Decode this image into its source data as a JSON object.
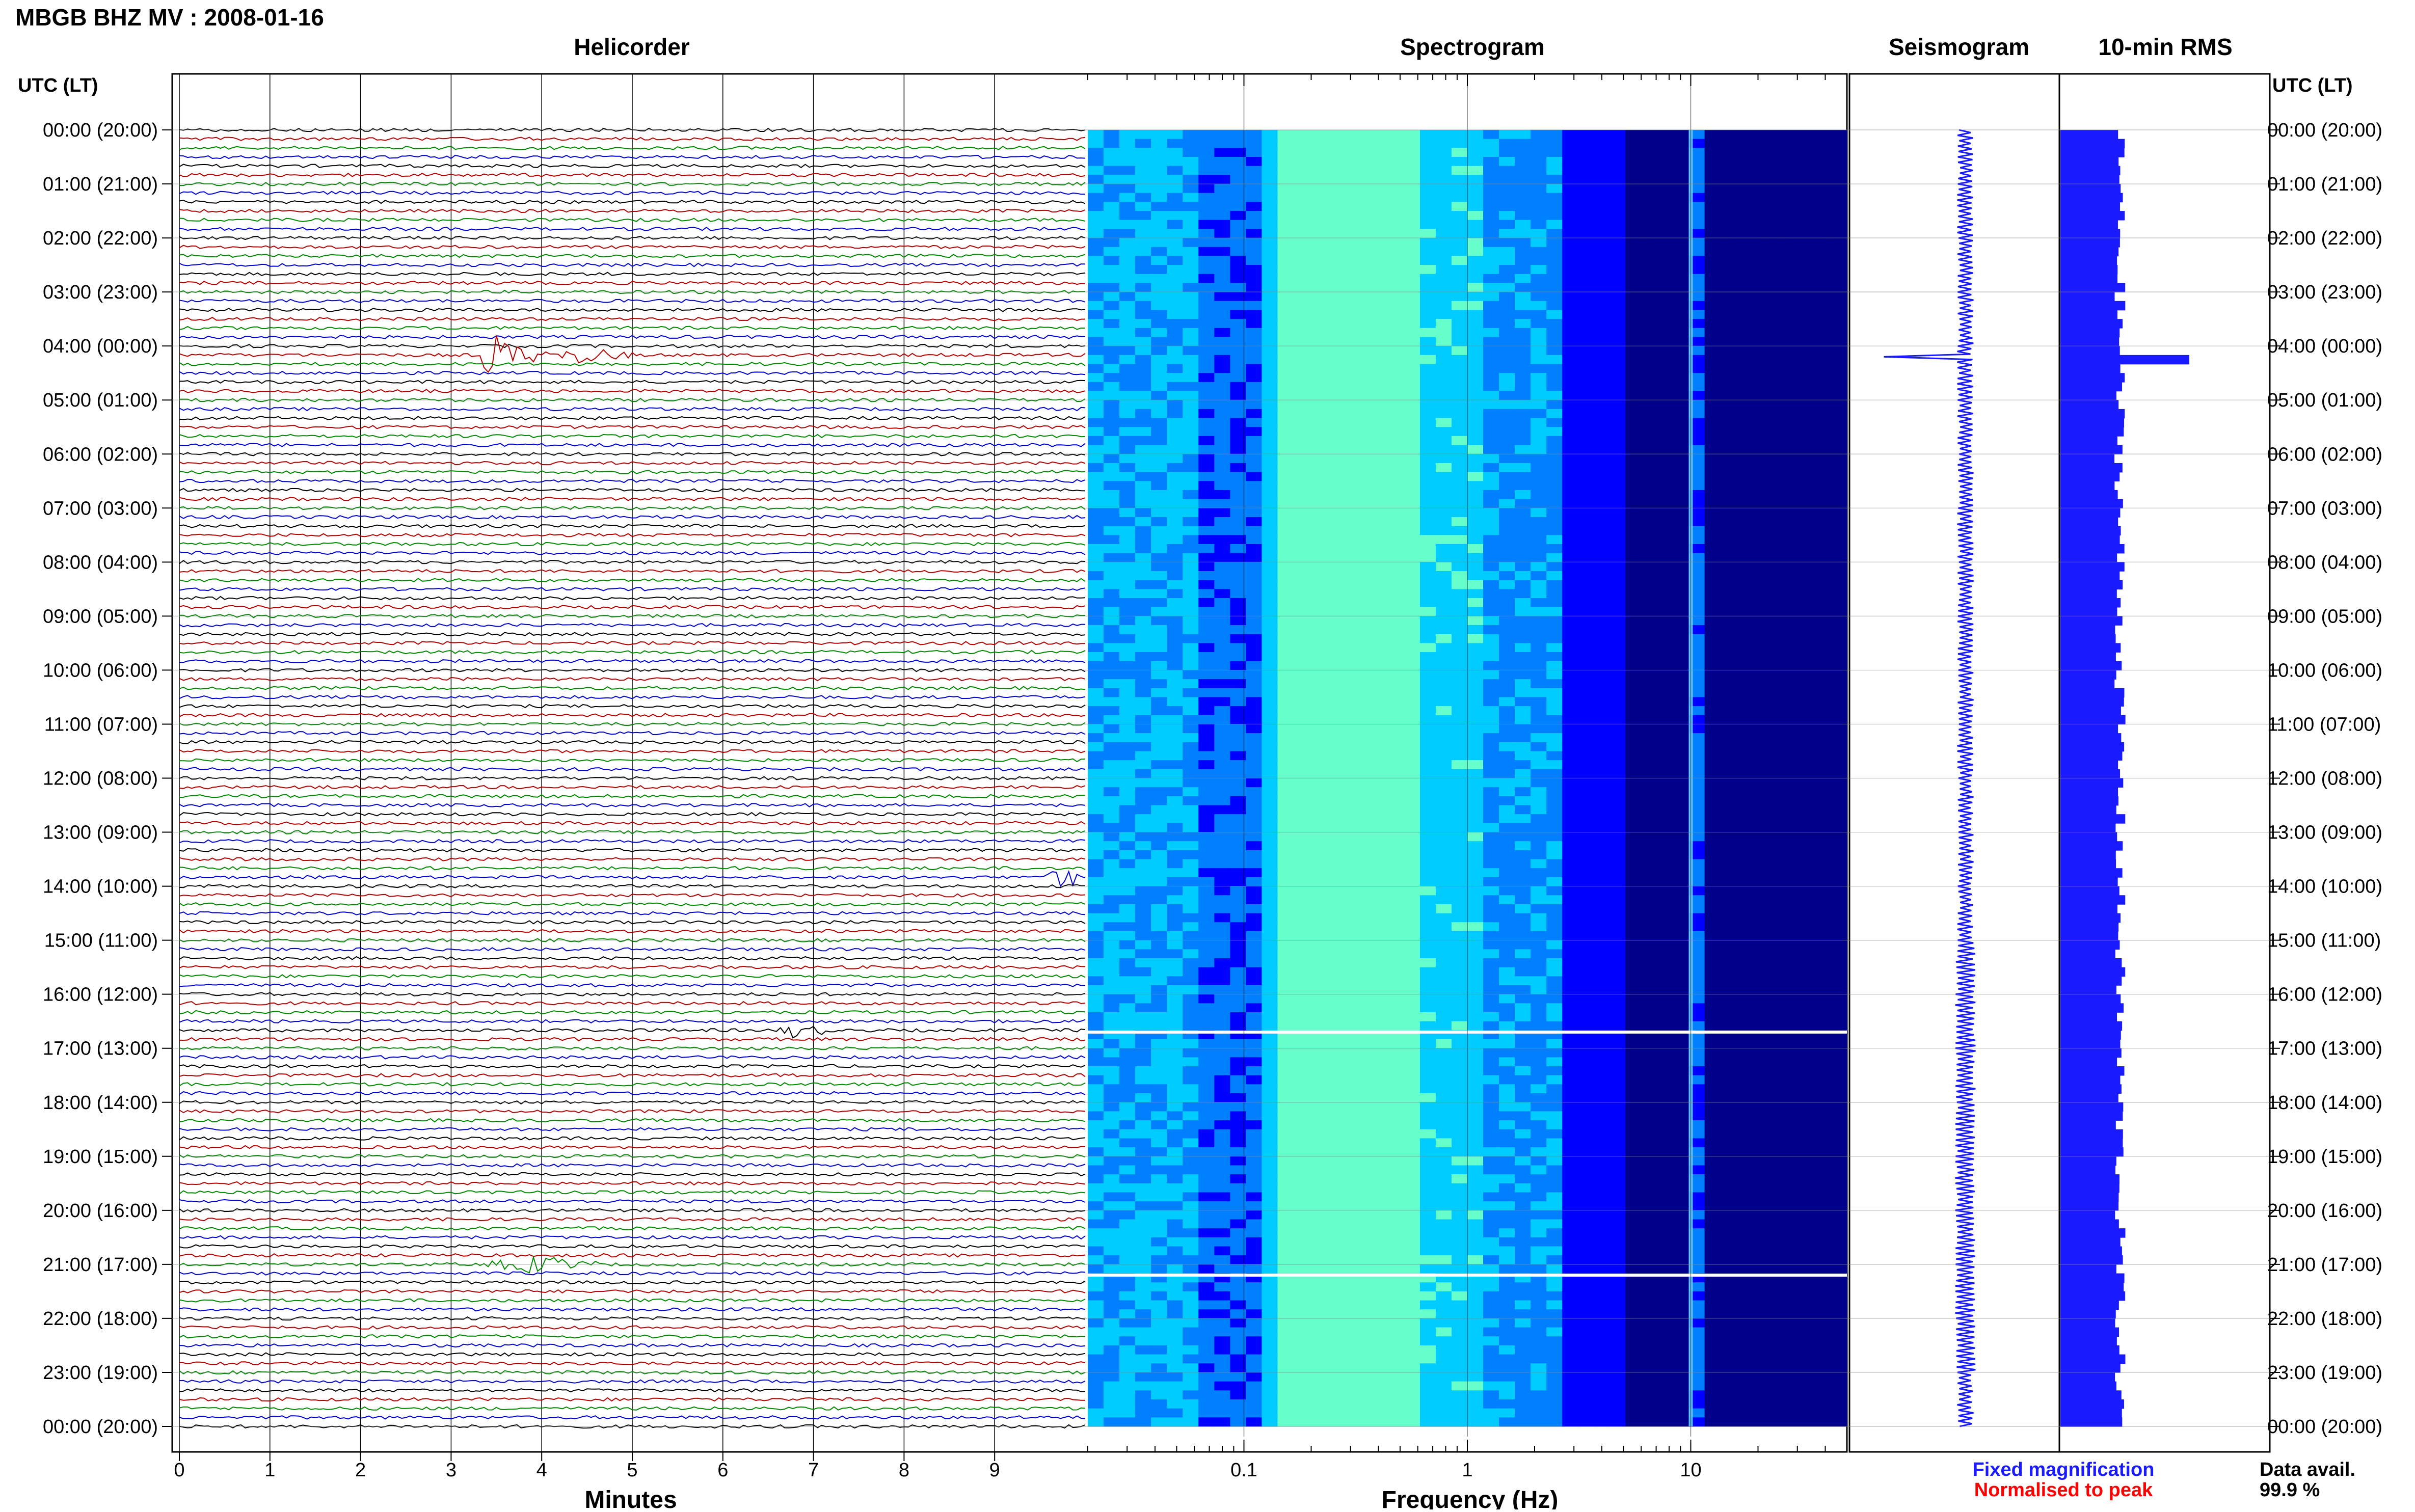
{
  "page": {
    "title": "MBGB BHZ MV : 2008-01-16",
    "legend": {
      "fixed": "Fixed magnification",
      "normalised": "Normalised to peak"
    },
    "data_avail_label": "Data avail.",
    "data_avail_value": "99.9 %"
  },
  "colors": {
    "fixed": "#1a1aff",
    "normalised": "#ff0000",
    "helicorder_cycle": [
      "#000000",
      "#b00000",
      "#008800",
      "#0000cc"
    ],
    "rms_fill": "#1a1aff"
  },
  "chart_data": [
    {
      "type": "line",
      "title": "Helicorder",
      "xlabel": "Minutes",
      "x_ticks": [
        "0",
        "1",
        "2",
        "3",
        "4",
        "5",
        "6",
        "7",
        "8",
        "9"
      ],
      "xlim": [
        0,
        10
      ],
      "y_axis_label": "UTC (LT)",
      "y_ticks": [
        "00:00 (20:00)",
        "01:00 (21:00)",
        "02:00 (22:00)",
        "03:00 (23:00)",
        "04:00 (00:00)",
        "05:00 (01:00)",
        "06:00 (02:00)",
        "07:00 (03:00)",
        "08:00 (04:00)",
        "09:00 (05:00)",
        "10:00 (06:00)",
        "11:00 (07:00)",
        "12:00 (08:00)",
        "13:00 (09:00)",
        "14:00 (10:00)",
        "15:00 (11:00)",
        "16:00 (12:00)",
        "17:00 (13:00)",
        "18:00 (14:00)",
        "19:00 (15:00)",
        "20:00 (16:00)",
        "21:00 (17:00)",
        "22:00 (18:00)",
        "23:00 (19:00)",
        "00:00 (20:00)"
      ],
      "trace_count": 144,
      "minutes_per_trace": 10,
      "events": [
        {
          "hour": 4.1,
          "start_min": 3.3,
          "peak_min": 3.4,
          "end_min": 5.3,
          "amp": 3.5
        },
        {
          "hour": 4.1,
          "start_min": 4.2,
          "peak_min": 4.4,
          "end_min": 5.0,
          "amp": 1.2
        },
        {
          "hour": 13.9,
          "start_min": 9.5,
          "peak_min": 9.8,
          "end_min": 9.95,
          "amp": 1.4
        },
        {
          "hour": 20.95,
          "start_min": 3.3,
          "peak_min": 4.0,
          "end_min": 4.6,
          "amp": 1.2
        },
        {
          "hour": 16.6,
          "start_min": 6.6,
          "peak_min": 6.8,
          "end_min": 7.1,
          "amp": 1.0
        }
      ]
    },
    {
      "type": "heatmap",
      "title": "Spectrogram",
      "xlabel": "Frequency (Hz)",
      "x_scale": "log",
      "x_ticks": [
        "0.1",
        "1",
        "10"
      ],
      "xlim": [
        0.02,
        50
      ],
      "ylim": [
        0,
        24
      ],
      "colormap": [
        "#00008b",
        "#0000ff",
        "#0080ff",
        "#00ccff",
        "#66ffcc",
        "#ffff66"
      ],
      "features": [
        {
          "name": "microseism band",
          "freq_range": [
            0.15,
            0.6
          ]
        },
        {
          "name": "persistent line",
          "freq": 10
        },
        {
          "name": "gap",
          "hour": 16.7
        },
        {
          "name": "gap",
          "hour": 21.2
        }
      ]
    },
    {
      "type": "line",
      "title": "Seismogram",
      "ylim": [
        0,
        24
      ],
      "spike_hour": 4.2
    },
    {
      "type": "bar",
      "title": "10-min RMS",
      "ylim": [
        0,
        24
      ],
      "typical_value": 1.0,
      "peak": {
        "hour": 4.2,
        "value": 2.1
      }
    }
  ]
}
